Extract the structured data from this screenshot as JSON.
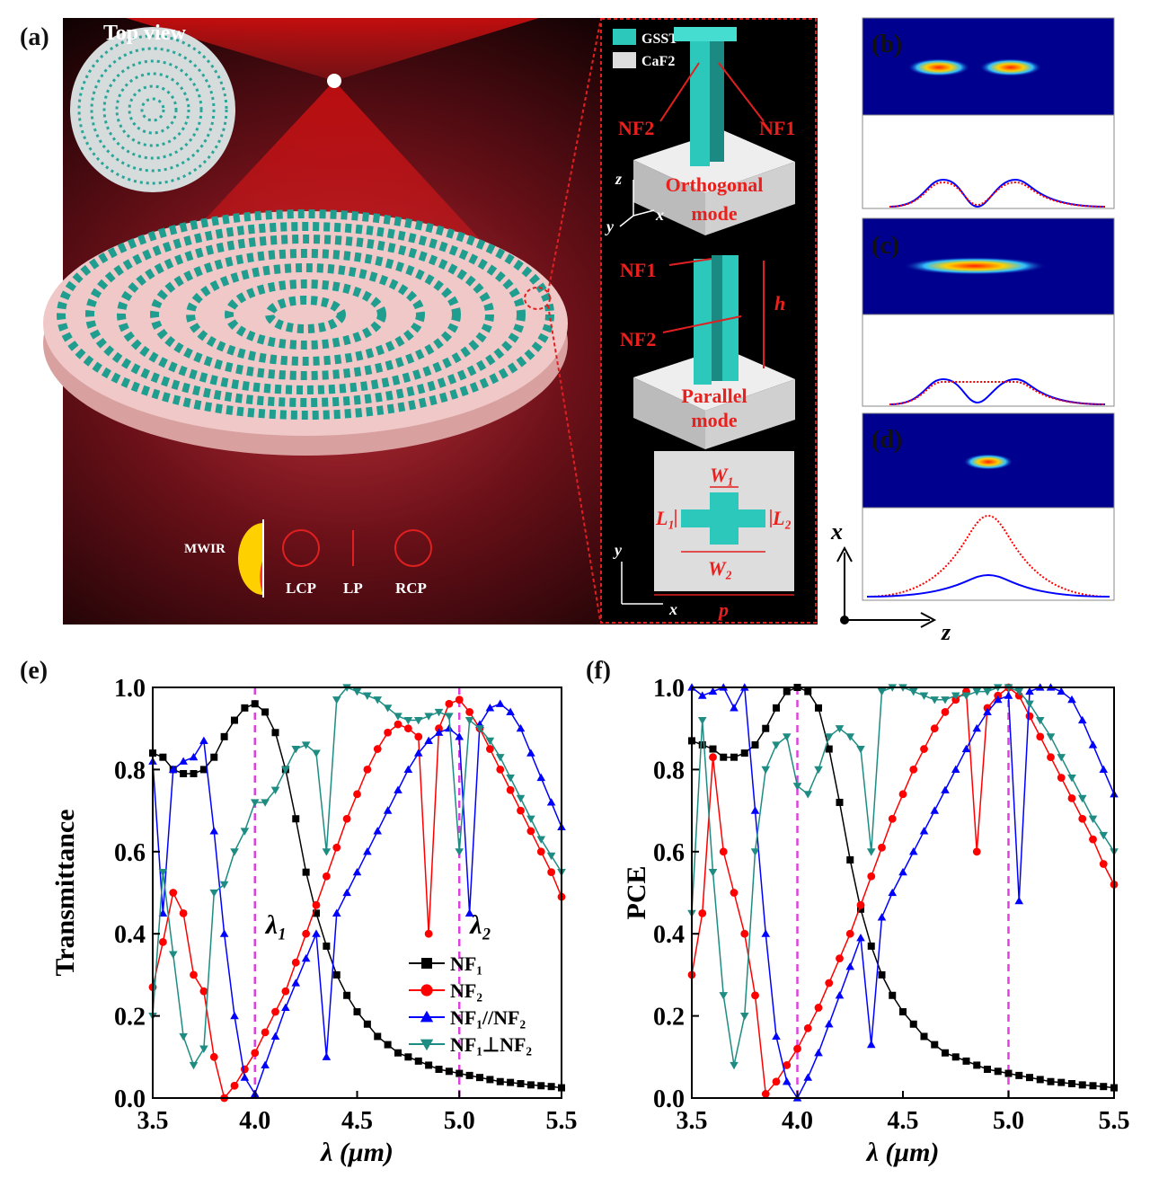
{
  "panel_labels": [
    "(a)",
    "(b)",
    "(c)",
    "(d)",
    "(e)",
    "(f)"
  ],
  "panel_a": {
    "top_view": "Top view",
    "materials": [
      "GSST",
      "CaF2"
    ],
    "nf_labels": [
      "NF2",
      "NF1",
      "NF1",
      "NF2"
    ],
    "modes": [
      [
        "Orthogonal",
        "mode"
      ],
      [
        "Parallel",
        "mode"
      ]
    ],
    "dims": [
      "h",
      "W₁",
      "L₁",
      "L₂",
      "W₂",
      "p"
    ],
    "axes": [
      "z",
      "y",
      "x",
      "y",
      "x"
    ],
    "polarization": [
      "MWIR",
      "LCP",
      "LP",
      "RCP"
    ]
  },
  "xz_axes": [
    "x",
    "z"
  ],
  "chart_data": [
    {
      "type": "line",
      "xlabel": "λ (μm)",
      "ylabel": "Transmittance",
      "x": [
        3.5,
        3.55,
        3.6,
        3.65,
        3.7,
        3.75,
        3.8,
        3.85,
        3.9,
        3.95,
        4.0,
        4.05,
        4.1,
        4.15,
        4.2,
        4.25,
        4.3,
        4.35,
        4.4,
        4.45,
        4.5,
        4.55,
        4.6,
        4.65,
        4.7,
        4.75,
        4.8,
        4.85,
        4.9,
        4.95,
        5.0,
        5.05,
        5.1,
        5.15,
        5.2,
        5.25,
        5.3,
        5.35,
        5.4,
        5.45,
        5.5
      ],
      "xlim": [
        3.5,
        5.5
      ],
      "xticks": [
        3.5,
        {
          "value": 4,
          "label": "4.0"
        },
        4.5,
        {
          "value": 5,
          "label": "5.0"
        },
        5.5
      ],
      "ylim": [
        0,
        1
      ],
      "yticks": [
        {
          "value": 0,
          "label": "0.0"
        },
        0.2,
        0.4,
        0.6,
        0.8,
        {
          "value": 1,
          "label": "1.0"
        }
      ],
      "vlines": [
        {
          "value": 4,
          "label": "λ₁"
        },
        {
          "value": 5,
          "label": "λ₂"
        }
      ],
      "legend": "lower right",
      "series": [
        {
          "name": "NF₁",
          "color": "#000000",
          "marker": "square",
          "values": [
            0.84,
            0.83,
            0.8,
            0.79,
            0.79,
            0.8,
            0.83,
            0.88,
            0.92,
            0.95,
            0.96,
            0.94,
            0.89,
            0.8,
            0.68,
            0.55,
            0.45,
            0.37,
            0.3,
            0.25,
            0.21,
            0.18,
            0.15,
            0.13,
            0.11,
            0.1,
            0.09,
            0.08,
            0.07,
            0.065,
            0.06,
            0.055,
            0.05,
            0.045,
            0.04,
            0.038,
            0.035,
            0.032,
            0.03,
            0.028,
            0.025
          ]
        },
        {
          "name": "NF₂",
          "color": "#ff0000",
          "marker": "circle",
          "values": [
            0.27,
            0.38,
            0.5,
            0.45,
            0.3,
            0.26,
            0.1,
            0.0,
            0.03,
            0.07,
            0.11,
            0.16,
            0.21,
            0.26,
            0.33,
            0.4,
            0.47,
            0.54,
            0.61,
            0.68,
            0.74,
            0.8,
            0.85,
            0.89,
            0.91,
            0.9,
            0.88,
            0.4,
            0.9,
            0.96,
            0.97,
            0.94,
            0.9,
            0.85,
            0.8,
            0.75,
            0.7,
            0.65,
            0.6,
            0.55,
            0.49
          ]
        },
        {
          "name": "NF₁//NF₂",
          "color": "#0000ff",
          "marker": "triangle-up",
          "values": [
            0.82,
            0.45,
            0.8,
            0.82,
            0.83,
            0.87,
            0.65,
            0.4,
            0.2,
            0.05,
            0.01,
            0.08,
            0.15,
            0.22,
            0.28,
            0.34,
            0.4,
            0.1,
            0.45,
            0.5,
            0.55,
            0.6,
            0.65,
            0.7,
            0.75,
            0.8,
            0.84,
            0.87,
            0.89,
            0.9,
            0.88,
            0.45,
            0.91,
            0.95,
            0.96,
            0.94,
            0.9,
            0.84,
            0.78,
            0.72,
            0.66
          ]
        },
        {
          "name": "NF₁⊥NF₂",
          "color": "#1e8c82",
          "marker": "triangle-down",
          "values": [
            0.2,
            0.55,
            0.35,
            0.15,
            0.08,
            0.12,
            0.5,
            0.52,
            0.6,
            0.65,
            0.72,
            0.72,
            0.75,
            0.8,
            0.85,
            0.86,
            0.84,
            0.6,
            0.97,
            1.0,
            0.99,
            0.98,
            0.97,
            0.95,
            0.93,
            0.92,
            0.92,
            0.93,
            0.94,
            0.93,
            0.6,
            0.92,
            0.9,
            0.87,
            0.83,
            0.78,
            0.73,
            0.68,
            0.63,
            0.59,
            0.55
          ]
        }
      ]
    },
    {
      "type": "line",
      "xlabel": "λ (μm)",
      "ylabel": "PCE",
      "x": [
        3.5,
        3.55,
        3.6,
        3.65,
        3.7,
        3.75,
        3.8,
        3.85,
        3.9,
        3.95,
        4.0,
        4.05,
        4.1,
        4.15,
        4.2,
        4.25,
        4.3,
        4.35,
        4.4,
        4.45,
        4.5,
        4.55,
        4.6,
        4.65,
        4.7,
        4.75,
        4.8,
        4.85,
        4.9,
        4.95,
        5.0,
        5.05,
        5.1,
        5.15,
        5.2,
        5.25,
        5.3,
        5.35,
        5.4,
        5.45,
        5.5
      ],
      "xlim": [
        3.5,
        5.5
      ],
      "xticks": [
        3.5,
        {
          "value": 4,
          "label": "4.0"
        },
        4.5,
        {
          "value": 5,
          "label": "5.0"
        },
        5.5
      ],
      "ylim": [
        0,
        1
      ],
      "yticks": [
        {
          "value": 0,
          "label": "0.0"
        },
        0.2,
        0.4,
        0.6,
        0.8,
        {
          "value": 1,
          "label": "1.0"
        }
      ],
      "vlines": [
        4,
        5
      ],
      "series": [
        {
          "color": "#000000",
          "marker": "square",
          "values": [
            0.87,
            0.86,
            0.85,
            0.83,
            0.83,
            0.84,
            0.86,
            0.9,
            0.95,
            0.99,
            1.0,
            0.99,
            0.95,
            0.85,
            0.72,
            0.58,
            0.46,
            0.37,
            0.3,
            0.25,
            0.21,
            0.18,
            0.15,
            0.13,
            0.11,
            0.1,
            0.09,
            0.08,
            0.07,
            0.065,
            0.06,
            0.055,
            0.05,
            0.045,
            0.04,
            0.038,
            0.035,
            0.032,
            0.03,
            0.028,
            0.025
          ]
        },
        {
          "color": "#ff0000",
          "marker": "circle",
          "values": [
            0.3,
            0.45,
            0.83,
            0.6,
            0.5,
            0.4,
            0.25,
            0.01,
            0.04,
            0.08,
            0.12,
            0.17,
            0.22,
            0.28,
            0.34,
            0.4,
            0.47,
            0.54,
            0.61,
            0.68,
            0.74,
            0.8,
            0.85,
            0.9,
            0.94,
            0.97,
            0.99,
            0.6,
            0.95,
            0.98,
            1.0,
            0.98,
            0.93,
            0.88,
            0.83,
            0.78,
            0.73,
            0.68,
            0.63,
            0.57,
            0.52
          ]
        },
        {
          "color": "#0000ff",
          "marker": "triangle-up",
          "values": [
            1.0,
            0.98,
            0.99,
            1.0,
            0.95,
            1.0,
            0.7,
            0.4,
            0.15,
            0.04,
            0.0,
            0.05,
            0.11,
            0.18,
            0.25,
            0.32,
            0.39,
            0.13,
            0.44,
            0.5,
            0.55,
            0.6,
            0.65,
            0.7,
            0.75,
            0.8,
            0.85,
            0.9,
            0.94,
            0.97,
            0.98,
            0.48,
            0.99,
            1.0,
            1.0,
            0.99,
            0.97,
            0.92,
            0.86,
            0.8,
            0.74
          ]
        },
        {
          "color": "#1e8c82",
          "marker": "triangle-down",
          "values": [
            0.45,
            0.92,
            0.55,
            0.25,
            0.08,
            0.2,
            0.6,
            0.8,
            0.86,
            0.88,
            0.76,
            0.74,
            0.8,
            0.88,
            0.9,
            0.88,
            0.85,
            0.6,
            0.99,
            1.0,
            1.0,
            0.99,
            0.98,
            0.97,
            0.97,
            0.98,
            0.98,
            0.99,
            0.99,
            1.0,
            1.0,
            0.99,
            0.96,
            0.92,
            0.88,
            0.83,
            0.78,
            0.73,
            0.68,
            0.64,
            0.6
          ]
        }
      ]
    }
  ]
}
